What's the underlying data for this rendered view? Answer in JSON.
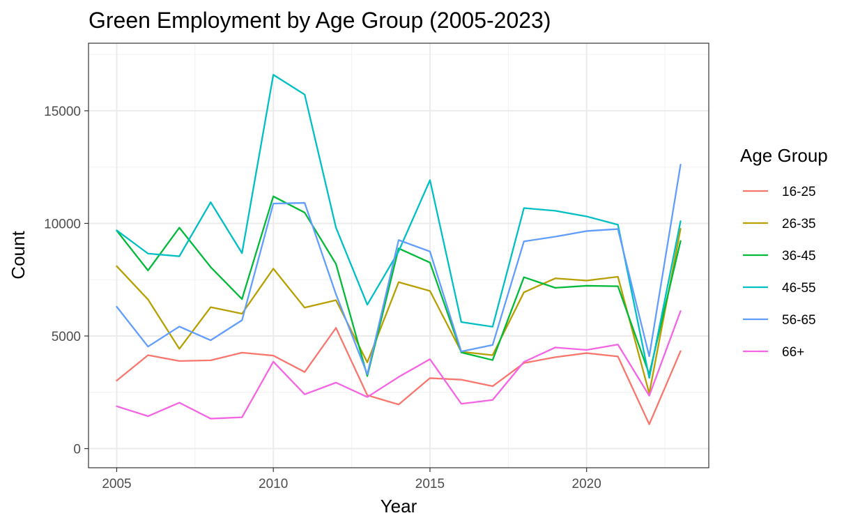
{
  "chart_data": {
    "type": "line",
    "title": "Green Employment by Age Group (2005-2023)",
    "xlabel": "Year",
    "ylabel": "Count",
    "x": [
      2005,
      2006,
      2007,
      2008,
      2009,
      2010,
      2011,
      2012,
      2013,
      2014,
      2015,
      2016,
      2017,
      2018,
      2019,
      2020,
      2021,
      2022,
      2023
    ],
    "xlim": [
      2004.1,
      2023.9
    ],
    "ylim": [
      -850,
      18000
    ],
    "x_ticks": [
      2005,
      2010,
      2015,
      2020
    ],
    "x_tick_labels": [
      "2005",
      "2010",
      "2015",
      "2020"
    ],
    "y_ticks": [
      0,
      5000,
      10000,
      15000
    ],
    "y_tick_labels": [
      "0",
      "5000",
      "10000",
      "15000"
    ],
    "grid": true,
    "legend": {
      "title": "Age Group",
      "position": "right"
    },
    "series": [
      {
        "name": "16-25",
        "color": "#F8766D",
        "values": [
          3020,
          4150,
          3890,
          3920,
          4260,
          4130,
          3400,
          5360,
          2370,
          1960,
          3130,
          3060,
          2770,
          3800,
          4060,
          4240,
          4090,
          1080,
          4330
        ]
      },
      {
        "name": "26-35",
        "color": "#B79F00",
        "values": [
          8100,
          6620,
          4430,
          6280,
          5990,
          7990,
          6260,
          6590,
          3830,
          7390,
          7000,
          4300,
          4150,
          6940,
          7560,
          7460,
          7630,
          2450,
          9760
        ]
      },
      {
        "name": "36-45",
        "color": "#00BA38",
        "values": [
          9680,
          7910,
          9810,
          8060,
          6640,
          11200,
          10480,
          8200,
          3220,
          8890,
          8260,
          4270,
          3930,
          7610,
          7140,
          7230,
          7210,
          3300,
          9220
        ]
      },
      {
        "name": "46-55",
        "color": "#00BFC4",
        "values": [
          9690,
          8660,
          8540,
          10940,
          8680,
          16600,
          15720,
          9810,
          6390,
          8760,
          11920,
          5620,
          5410,
          10680,
          10560,
          10310,
          9940,
          3140,
          10100
        ]
      },
      {
        "name": "56-65",
        "color": "#619CFF",
        "values": [
          6300,
          4530,
          5420,
          4810,
          5700,
          10880,
          10910,
          6850,
          3300,
          9260,
          8750,
          4310,
          4600,
          9200,
          9410,
          9660,
          9750,
          4100,
          12610
        ]
      },
      {
        "name": "66+",
        "color": "#F564E3",
        "values": [
          1880,
          1440,
          2040,
          1330,
          1390,
          3860,
          2410,
          2930,
          2290,
          3180,
          3970,
          1990,
          2160,
          3850,
          4490,
          4380,
          4620,
          2350,
          6110
        ]
      }
    ]
  }
}
